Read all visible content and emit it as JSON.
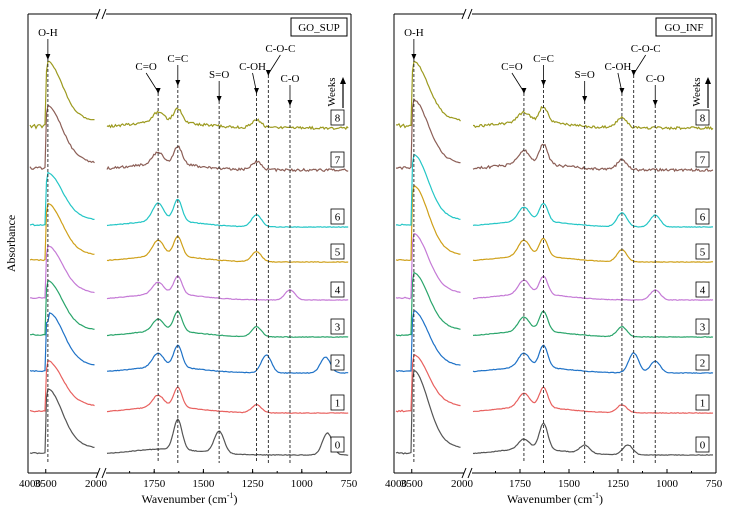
{
  "colors": {
    "0": "#555555",
    "1": "#e8615f",
    "2": "#1f72c7",
    "3": "#2aa56b",
    "4": "#c57ad6",
    "5": "#cfa019",
    "6": "#24c6c6",
    "7": "#8c5f57",
    "8": "#9c9a1f"
  },
  "chart_data": [
    {
      "type": "line",
      "title": "GO_SUP",
      "ylabel": "Absorbance",
      "xlabel": "Wavenumber (cm",
      "xlabel_sup": "-1",
      "xlabel_end": ")",
      "xaxis": {
        "left_segment": {
          "range": [
            4000,
            2000
          ],
          "ticks": [
            "4000",
            "3500",
            "2000"
          ]
        },
        "right_segment": {
          "range": [
            2000,
            750
          ],
          "ticks": [
            "2000",
            "1750",
            "1500",
            "1250",
            "1000",
            "750"
          ]
        }
      },
      "legend_title": "Weeks",
      "series": [
        {
          "name": "0",
          "left_peak": 3440,
          "right_peaks": [
            {
              "x": 1630,
              "h": 30
            },
            {
              "x": 1420,
              "h": 22
            },
            {
              "x": 870,
              "h": 22
            }
          ]
        },
        {
          "name": "1",
          "left_peak": 3440,
          "right_peaks": [
            {
              "x": 1730,
              "h": 12
            },
            {
              "x": 1630,
              "h": 20
            },
            {
              "x": 1230,
              "h": 8
            }
          ]
        },
        {
          "name": "2",
          "left_peak": 3400,
          "right_peaks": [
            {
              "x": 1730,
              "h": 14
            },
            {
              "x": 1630,
              "h": 22
            },
            {
              "x": 1180,
              "h": 18
            },
            {
              "x": 880,
              "h": 16
            }
          ]
        },
        {
          "name": "3",
          "left_peak": 3440,
          "right_peaks": [
            {
              "x": 1730,
              "h": 12
            },
            {
              "x": 1630,
              "h": 20
            },
            {
              "x": 1230,
              "h": 10
            }
          ]
        },
        {
          "name": "4",
          "left_peak": 3440,
          "right_peaks": [
            {
              "x": 1730,
              "h": 12
            },
            {
              "x": 1630,
              "h": 18
            },
            {
              "x": 1060,
              "h": 10
            }
          ]
        },
        {
          "name": "5",
          "left_peak": 3440,
          "right_peaks": [
            {
              "x": 1730,
              "h": 16
            },
            {
              "x": 1630,
              "h": 20
            },
            {
              "x": 1230,
              "h": 10
            }
          ]
        },
        {
          "name": "6",
          "left_peak": 3440,
          "right_peaks": [
            {
              "x": 1730,
              "h": 18
            },
            {
              "x": 1630,
              "h": 22
            },
            {
              "x": 1230,
              "h": 12
            }
          ]
        },
        {
          "name": "7",
          "left_peak": 3440,
          "right_peaks": [
            {
              "x": 1730,
              "h": 12
            },
            {
              "x": 1630,
              "h": 18
            },
            {
              "x": 1230,
              "h": 8
            }
          ]
        },
        {
          "name": "8",
          "left_peak": 3440,
          "right_peaks": [
            {
              "x": 1730,
              "h": 10
            },
            {
              "x": 1630,
              "h": 14
            },
            {
              "x": 1230,
              "h": 8
            }
          ]
        }
      ],
      "annotations": [
        {
          "label": "O-H",
          "x": 3440
        },
        {
          "label": "C=O",
          "x": 1730
        },
        {
          "label": "C=C",
          "x": 1630
        },
        {
          "label": "S=O",
          "x": 1420
        },
        {
          "label": "C-OH",
          "x": 1230
        },
        {
          "label": "C-O-C",
          "x": 1170
        },
        {
          "label": "C-O",
          "x": 1060
        }
      ]
    },
    {
      "type": "line",
      "title": "GO_INF",
      "ylabel": "",
      "xlabel": "Wavenumber (cm",
      "xlabel_sup": "-1",
      "xlabel_end": ")",
      "xaxis": {
        "left_segment": {
          "range": [
            4000,
            2000
          ],
          "ticks": [
            "4000",
            "3500",
            "2000"
          ]
        },
        "right_segment": {
          "range": [
            2000,
            750
          ],
          "ticks": [
            "2000",
            "1750",
            "1500",
            "1250",
            "1000",
            "750"
          ]
        }
      },
      "legend_title": "Weeks",
      "series": [
        {
          "name": "0",
          "left_peak": 3440,
          "right_peaks": [
            {
              "x": 1730,
              "h": 10
            },
            {
              "x": 1630,
              "h": 26
            },
            {
              "x": 1420,
              "h": 8
            },
            {
              "x": 1200,
              "h": 10
            }
          ]
        },
        {
          "name": "1",
          "left_peak": 3440,
          "right_peaks": [
            {
              "x": 1730,
              "h": 14
            },
            {
              "x": 1630,
              "h": 20
            },
            {
              "x": 1230,
              "h": 8
            }
          ]
        },
        {
          "name": "2",
          "left_peak": 3440,
          "right_peaks": [
            {
              "x": 1730,
              "h": 14
            },
            {
              "x": 1630,
              "h": 22
            },
            {
              "x": 1170,
              "h": 20
            },
            {
              "x": 1060,
              "h": 12
            }
          ]
        },
        {
          "name": "3",
          "left_peak": 3440,
          "right_peaks": [
            {
              "x": 1730,
              "h": 14
            },
            {
              "x": 1630,
              "h": 20
            },
            {
              "x": 1230,
              "h": 10
            }
          ]
        },
        {
          "name": "4",
          "left_peak": 3440,
          "right_peaks": [
            {
              "x": 1730,
              "h": 14
            },
            {
              "x": 1630,
              "h": 18
            },
            {
              "x": 1060,
              "h": 10
            }
          ]
        },
        {
          "name": "5",
          "left_peak": 3440,
          "right_peaks": [
            {
              "x": 1730,
              "h": 16
            },
            {
              "x": 1630,
              "h": 18
            },
            {
              "x": 1230,
              "h": 12
            }
          ]
        },
        {
          "name": "6",
          "left_peak": 3440,
          "right_peaks": [
            {
              "x": 1730,
              "h": 14
            },
            {
              "x": 1630,
              "h": 18
            },
            {
              "x": 1230,
              "h": 14
            },
            {
              "x": 1060,
              "h": 12
            }
          ]
        },
        {
          "name": "7",
          "left_peak": 3440,
          "right_peaks": [
            {
              "x": 1730,
              "h": 14
            },
            {
              "x": 1630,
              "h": 20
            },
            {
              "x": 1230,
              "h": 10
            }
          ]
        },
        {
          "name": "8",
          "left_peak": 3440,
          "right_peaks": [
            {
              "x": 1730,
              "h": 10
            },
            {
              "x": 1630,
              "h": 16
            },
            {
              "x": 1230,
              "h": 10
            }
          ]
        }
      ],
      "annotations": [
        {
          "label": "O-H",
          "x": 3440
        },
        {
          "label": "C=O",
          "x": 1730
        },
        {
          "label": "C=C",
          "x": 1630
        },
        {
          "label": "S=O",
          "x": 1420
        },
        {
          "label": "C-OH",
          "x": 1230
        },
        {
          "label": "C-O-C",
          "x": 1170
        },
        {
          "label": "C-O",
          "x": 1060
        }
      ]
    }
  ]
}
